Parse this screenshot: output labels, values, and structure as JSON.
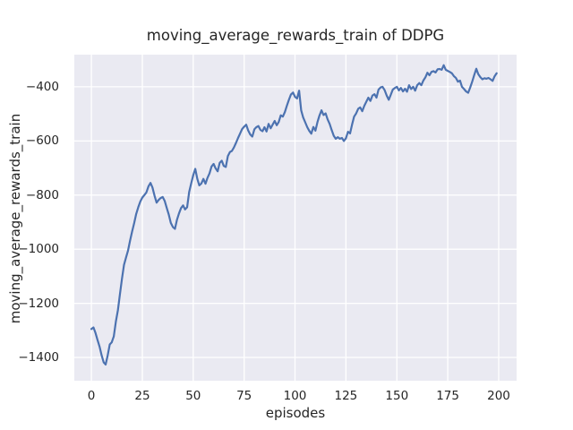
{
  "figure": {
    "title": "moving_average_rewards_train of DDPG",
    "xlabel": "episodes",
    "ylabel": "moving_average_rewards_train"
  },
  "chart_data": {
    "type": "line",
    "title": "moving_average_rewards_train of DDPG",
    "xlabel": "episodes",
    "ylabel": "moving_average_rewards_train",
    "x_ticks": [
      0,
      25,
      50,
      75,
      100,
      125,
      150,
      175,
      200
    ],
    "y_ticks": [
      -400,
      -600,
      -800,
      -1000,
      -1200,
      -1400
    ],
    "xlim": [
      -8.4,
      208.8
    ],
    "ylim": [
      -1486,
      -281
    ],
    "grid": true,
    "legend_position": "none",
    "colors": {
      "line": "#4C72B0",
      "plot_bg": "#EAEAF2",
      "grid": "#FFFFFF",
      "text": "#262626",
      "figure_bg": "#FFFFFF"
    },
    "series": [
      {
        "name": "moving_average_rewards_train",
        "x_start": 0,
        "x_step": 1,
        "values": [
          -1295,
          -1289,
          -1310,
          -1335,
          -1360,
          -1392,
          -1418,
          -1426,
          -1392,
          -1352,
          -1344,
          -1322,
          -1268,
          -1225,
          -1168,
          -1110,
          -1058,
          -1030,
          -1005,
          -968,
          -934,
          -903,
          -870,
          -845,
          -824,
          -809,
          -800,
          -790,
          -768,
          -755,
          -772,
          -802,
          -828,
          -818,
          -811,
          -807,
          -822,
          -848,
          -872,
          -903,
          -918,
          -925,
          -892,
          -868,
          -848,
          -838,
          -853,
          -845,
          -788,
          -756,
          -727,
          -703,
          -740,
          -764,
          -757,
          -740,
          -758,
          -737,
          -720,
          -694,
          -685,
          -701,
          -712,
          -681,
          -673,
          -692,
          -696,
          -656,
          -641,
          -637,
          -624,
          -607,
          -589,
          -573,
          -556,
          -547,
          -540,
          -561,
          -576,
          -584,
          -557,
          -549,
          -545,
          -559,
          -564,
          -549,
          -565,
          -537,
          -553,
          -540,
          -526,
          -542,
          -530,
          -505,
          -510,
          -493,
          -470,
          -448,
          -428,
          -421,
          -437,
          -443,
          -414,
          -487,
          -513,
          -531,
          -549,
          -563,
          -573,
          -548,
          -562,
          -530,
          -506,
          -487,
          -504,
          -498,
          -520,
          -537,
          -560,
          -581,
          -592,
          -586,
          -592,
          -589,
          -600,
          -590,
          -566,
          -572,
          -540,
          -510,
          -498,
          -481,
          -476,
          -490,
          -470,
          -455,
          -440,
          -452,
          -432,
          -427,
          -440,
          -410,
          -402,
          -400,
          -412,
          -432,
          -448,
          -430,
          -410,
          -404,
          -400,
          -413,
          -404,
          -417,
          -407,
          -418,
          -394,
          -408,
          -400,
          -414,
          -394,
          -386,
          -394,
          -377,
          -365,
          -348,
          -357,
          -345,
          -342,
          -347,
          -335,
          -334,
          -337,
          -320,
          -337,
          -341,
          -345,
          -350,
          -360,
          -367,
          -381,
          -377,
          -400,
          -408,
          -417,
          -422,
          -403,
          -381,
          -356,
          -333,
          -353,
          -364,
          -372,
          -368,
          -370,
          -367,
          -372,
          -378,
          -361,
          -350
        ]
      }
    ]
  }
}
